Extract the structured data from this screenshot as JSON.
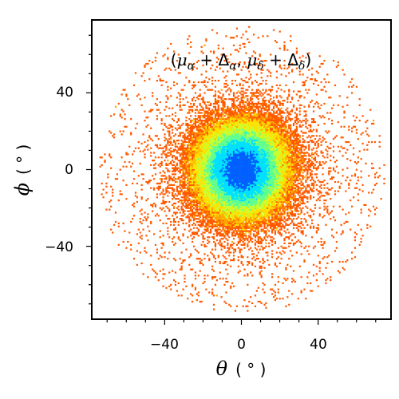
{
  "chart_data": {
    "type": "heatmap",
    "description_kind": "2D density histogram",
    "xlabel_symbol": "θ",
    "xlabel_unit": "( ° )",
    "ylabel_symbol": "ϕ",
    "ylabel_unit": "( ° )",
    "xlim": [
      -78,
      78
    ],
    "ylim": [
      -78,
      78
    ],
    "xticks": [
      -40,
      0,
      40
    ],
    "xtick_labels": [
      "−40",
      "0",
      "40"
    ],
    "yticks": [
      -40,
      0,
      40
    ],
    "ytick_labels": [
      "−40",
      "0",
      "40"
    ],
    "minor_tick_step": 10,
    "grid": false,
    "annotation": {
      "open": "(",
      "mu": "μ",
      "sub_alpha": "α",
      "plus": " + ",
      "delta": "Δ",
      "comma": ", ",
      "sub_delta": "δ",
      "close": ")"
    },
    "distribution": {
      "center": [
        0,
        0
      ],
      "core_sigma_deg": 10,
      "halo_extent_deg": 75
    },
    "colormap": [
      "#ff0000",
      "#ff5a00",
      "#ffa500",
      "#ffe000",
      "#c8ff30",
      "#60ff90",
      "#00e0ff",
      "#0060ff"
    ]
  }
}
